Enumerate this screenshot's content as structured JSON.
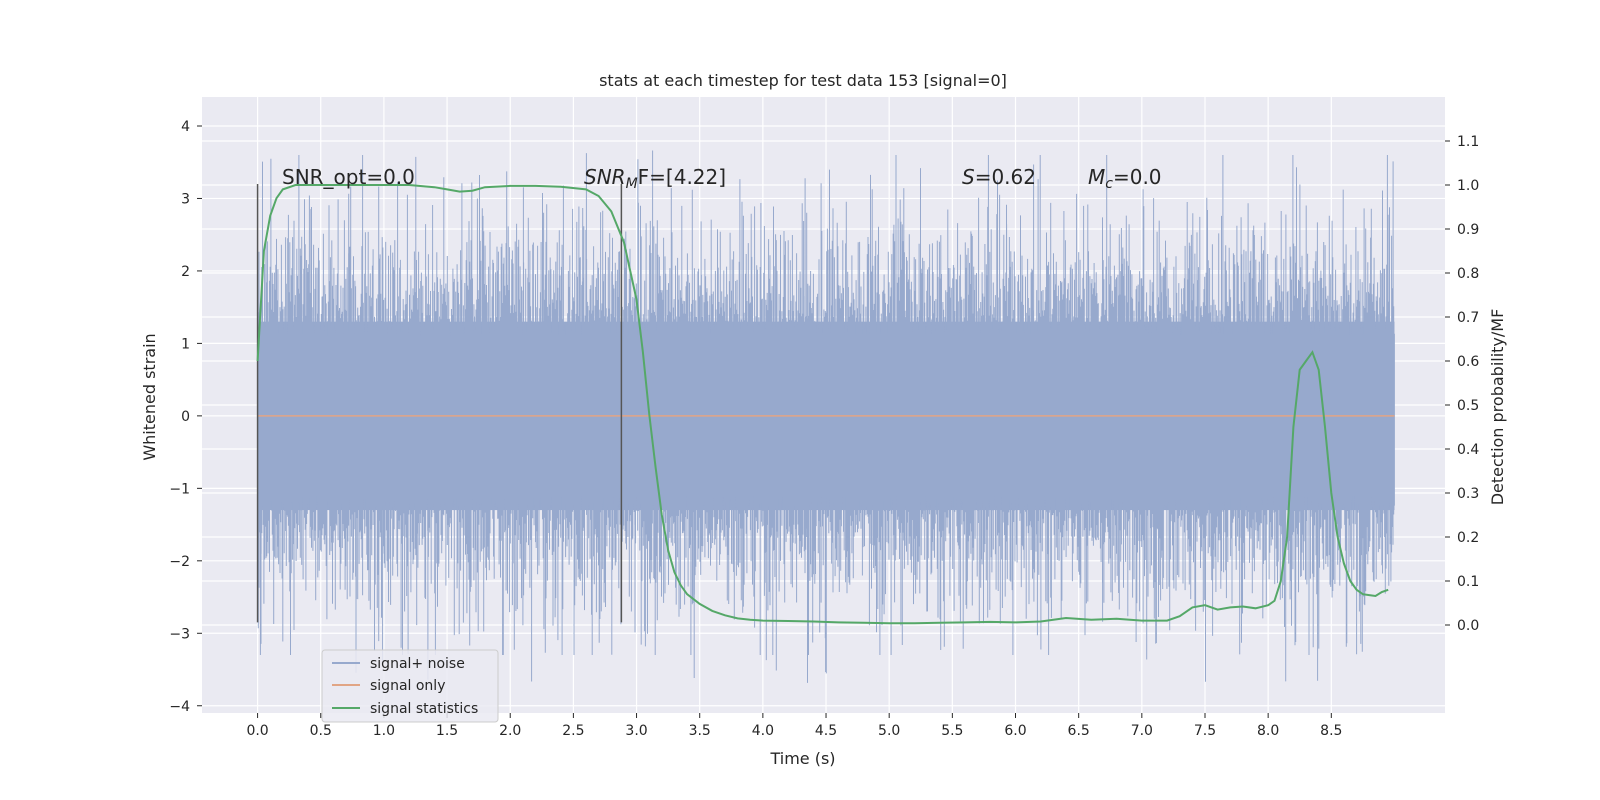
{
  "chart_data": {
    "type": "line",
    "title": "stats at each timestep for test data 153 [signal=0]",
    "xlabel": "Time (s)",
    "ylabel_left": "Whitened strain",
    "ylabel_right": "Detection probability/MF",
    "xlim": [
      -0.44,
      9.4
    ],
    "ylim_left": [
      -4.1,
      4.4
    ],
    "ylim_right": [
      -0.2,
      1.2
    ],
    "xticks": [
      0.0,
      0.5,
      1.0,
      1.5,
      2.0,
      2.5,
      3.0,
      3.5,
      4.0,
      4.5,
      5.0,
      5.5,
      6.0,
      6.5,
      7.0,
      7.5,
      8.0,
      8.5
    ],
    "xtick_labels": [
      "0.0",
      "0.5",
      "1.0",
      "1.5",
      "2.0",
      "2.5",
      "3.0",
      "3.5",
      "4.0",
      "4.5",
      "5.0",
      "5.5",
      "6.0",
      "6.5",
      "7.0",
      "7.5",
      "8.0",
      "8.5"
    ],
    "yticks_left": [
      4,
      3,
      2,
      1,
      0,
      -1,
      -2,
      -3,
      -4
    ],
    "ytick_labels_left": [
      "4",
      "3",
      "2",
      "1",
      "0",
      "−1",
      "−2",
      "−3",
      "−4"
    ],
    "yticks_right": [
      1.1,
      1.0,
      0.9,
      0.8,
      0.7,
      0.6,
      0.5,
      0.4,
      0.3,
      0.2,
      0.1,
      0.0
    ],
    "ytick_labels_right": [
      "1.1",
      "1.0",
      "0.9",
      "0.8",
      "0.7",
      "0.6",
      "0.5",
      "0.4",
      "0.3",
      "0.2",
      "0.1",
      "0.0"
    ],
    "grid": true,
    "legend_position": "lower-left",
    "series": [
      {
        "name": "signal+ noise",
        "axis": "left",
        "color": "#97a9cd",
        "description_type": "noise",
        "x_range": [
          0.0,
          9.0
        ],
        "core_band": [
          -1.3,
          1.3
        ],
        "typical_peak": [
          -2.6,
          2.9
        ]
      },
      {
        "name": "signal only",
        "axis": "left",
        "color": "#e1a585",
        "x": [
          0.0,
          9.0
        ],
        "y": [
          0.0,
          0.0
        ]
      },
      {
        "name": "signal statistics",
        "axis": "right",
        "color": "#55a868",
        "x": [
          0.0,
          0.05,
          0.1,
          0.15,
          0.2,
          0.3,
          0.5,
          0.8,
          1.0,
          1.2,
          1.4,
          1.5,
          1.6,
          1.7,
          1.8,
          2.0,
          2.2,
          2.4,
          2.6,
          2.7,
          2.8,
          2.9,
          3.0,
          3.05,
          3.1,
          3.15,
          3.2,
          3.25,
          3.3,
          3.35,
          3.4,
          3.5,
          3.6,
          3.7,
          3.8,
          3.9,
          4.0,
          4.2,
          4.4,
          4.6,
          4.8,
          5.0,
          5.2,
          5.4,
          5.6,
          5.8,
          6.0,
          6.2,
          6.4,
          6.6,
          6.8,
          7.0,
          7.2,
          7.3,
          7.4,
          7.5,
          7.6,
          7.7,
          7.8,
          7.9,
          8.0,
          8.05,
          8.1,
          8.15,
          8.2,
          8.25,
          8.3,
          8.35,
          8.4,
          8.45,
          8.5,
          8.55,
          8.6,
          8.65,
          8.7,
          8.75,
          8.8,
          8.85,
          8.9,
          8.95
        ],
        "y": [
          0.6,
          0.85,
          0.93,
          0.97,
          0.99,
          1.0,
          1.0,
          1.0,
          1.0,
          1.0,
          0.995,
          0.99,
          0.985,
          0.987,
          0.995,
          0.998,
          0.998,
          0.996,
          0.99,
          0.975,
          0.94,
          0.87,
          0.74,
          0.62,
          0.48,
          0.36,
          0.25,
          0.17,
          0.12,
          0.09,
          0.07,
          0.048,
          0.032,
          0.022,
          0.015,
          0.012,
          0.01,
          0.009,
          0.008,
          0.006,
          0.005,
          0.004,
          0.004,
          0.005,
          0.006,
          0.007,
          0.006,
          0.008,
          0.016,
          0.012,
          0.014,
          0.01,
          0.01,
          0.02,
          0.04,
          0.045,
          0.035,
          0.04,
          0.042,
          0.038,
          0.045,
          0.055,
          0.1,
          0.2,
          0.45,
          0.58,
          0.6,
          0.62,
          0.58,
          0.45,
          0.3,
          0.2,
          0.14,
          0.1,
          0.08,
          0.07,
          0.068,
          0.066,
          0.075,
          0.08
        ]
      }
    ],
    "vertical_lines": [
      {
        "x": 0.0,
        "y_range": [
          -2.85,
          3.2
        ]
      },
      {
        "x": 2.88,
        "y_range": [
          -2.85,
          3.2
        ]
      }
    ],
    "annotations": [
      {
        "x": 0.2,
        "y": 3.2,
        "text": "SNR_opt=0.0"
      },
      {
        "x": 2.6,
        "y": 3.2,
        "text": "SNR_MF=[4.22]"
      },
      {
        "x": 5.6,
        "y": 3.2,
        "text": "S=0.62"
      },
      {
        "x": 6.6,
        "y": 3.2,
        "text": "M_c=0.0"
      }
    ]
  },
  "legend": {
    "items": [
      {
        "label": "signal+ noise",
        "color": "#97a9cd"
      },
      {
        "label": "signal only",
        "color": "#e1a585"
      },
      {
        "label": "signal statistics",
        "color": "#55a868"
      }
    ]
  },
  "annotations_text": {
    "snr_opt": "SNR_opt=0.0",
    "snr_mf_prefix": "SNR",
    "snr_mf_sub": "M",
    "snr_mf_suffix": "F=[4.22]",
    "s_prefix": "S",
    "s_suffix": "=0.62",
    "mc_prefix": "M",
    "mc_sub": "c",
    "mc_suffix": "=0.0"
  },
  "colors": {
    "plot_background": "#eaeaf2",
    "grid": "#ffffff",
    "vline": "#555555"
  }
}
